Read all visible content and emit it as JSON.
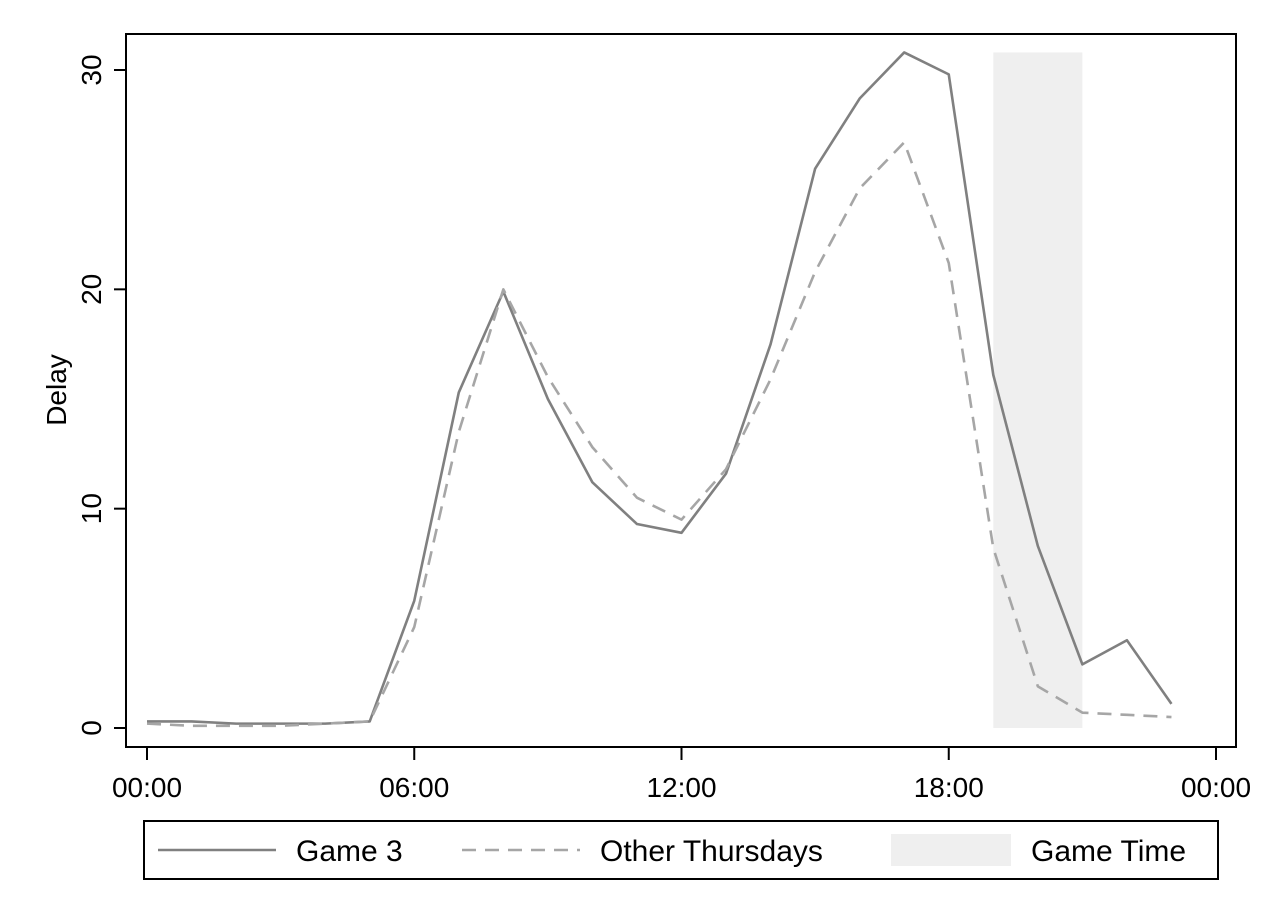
{
  "chart_data": {
    "type": "line",
    "title": "",
    "xlabel": "",
    "ylabel": "Delay",
    "x_ticks": [
      {
        "hour": 0,
        "label": "00:00"
      },
      {
        "hour": 6,
        "label": "06:00"
      },
      {
        "hour": 12,
        "label": "12:00"
      },
      {
        "hour": 18,
        "label": "18:00"
      },
      {
        "hour": 24,
        "label": "00:00"
      }
    ],
    "y_ticks": [
      0,
      10,
      20,
      30
    ],
    "xlim": [
      0,
      24
    ],
    "ylim": [
      0,
      30
    ],
    "grid": false,
    "legend_position": "bottom",
    "shaded_region": {
      "name": "Game Time",
      "x_start": 19,
      "x_end": 21,
      "color": "#efefef"
    },
    "x": [
      0,
      1,
      2,
      3,
      4,
      5,
      6,
      7,
      8,
      9,
      10,
      11,
      12,
      13,
      14,
      15,
      16,
      17,
      18,
      19,
      20,
      21,
      22,
      23
    ],
    "series": [
      {
        "name": "Game 3",
        "style": "solid",
        "color": "#808080",
        "values": [
          0.3,
          0.3,
          0.2,
          0.2,
          0.2,
          0.3,
          5.8,
          15.3,
          19.9,
          15.0,
          11.2,
          9.3,
          8.9,
          11.6,
          17.5,
          25.5,
          28.7,
          30.8,
          29.8,
          16.1,
          8.3,
          2.9,
          4.0,
          1.1
        ]
      },
      {
        "name": "Other Thursdays",
        "style": "dashed",
        "color": "#a6a6a6",
        "values": [
          0.2,
          0.1,
          0.1,
          0.1,
          0.2,
          0.3,
          4.6,
          13.5,
          20.0,
          16.0,
          12.8,
          10.5,
          9.5,
          11.8,
          15.9,
          20.8,
          24.6,
          26.7,
          21.2,
          8.2,
          1.9,
          0.7,
          0.6,
          0.5
        ]
      }
    ],
    "legend": [
      {
        "kind": "line-solid",
        "label": "Game 3"
      },
      {
        "kind": "line-dashed",
        "label": "Other Thursdays"
      },
      {
        "kind": "area",
        "label": "Game Time"
      }
    ]
  }
}
